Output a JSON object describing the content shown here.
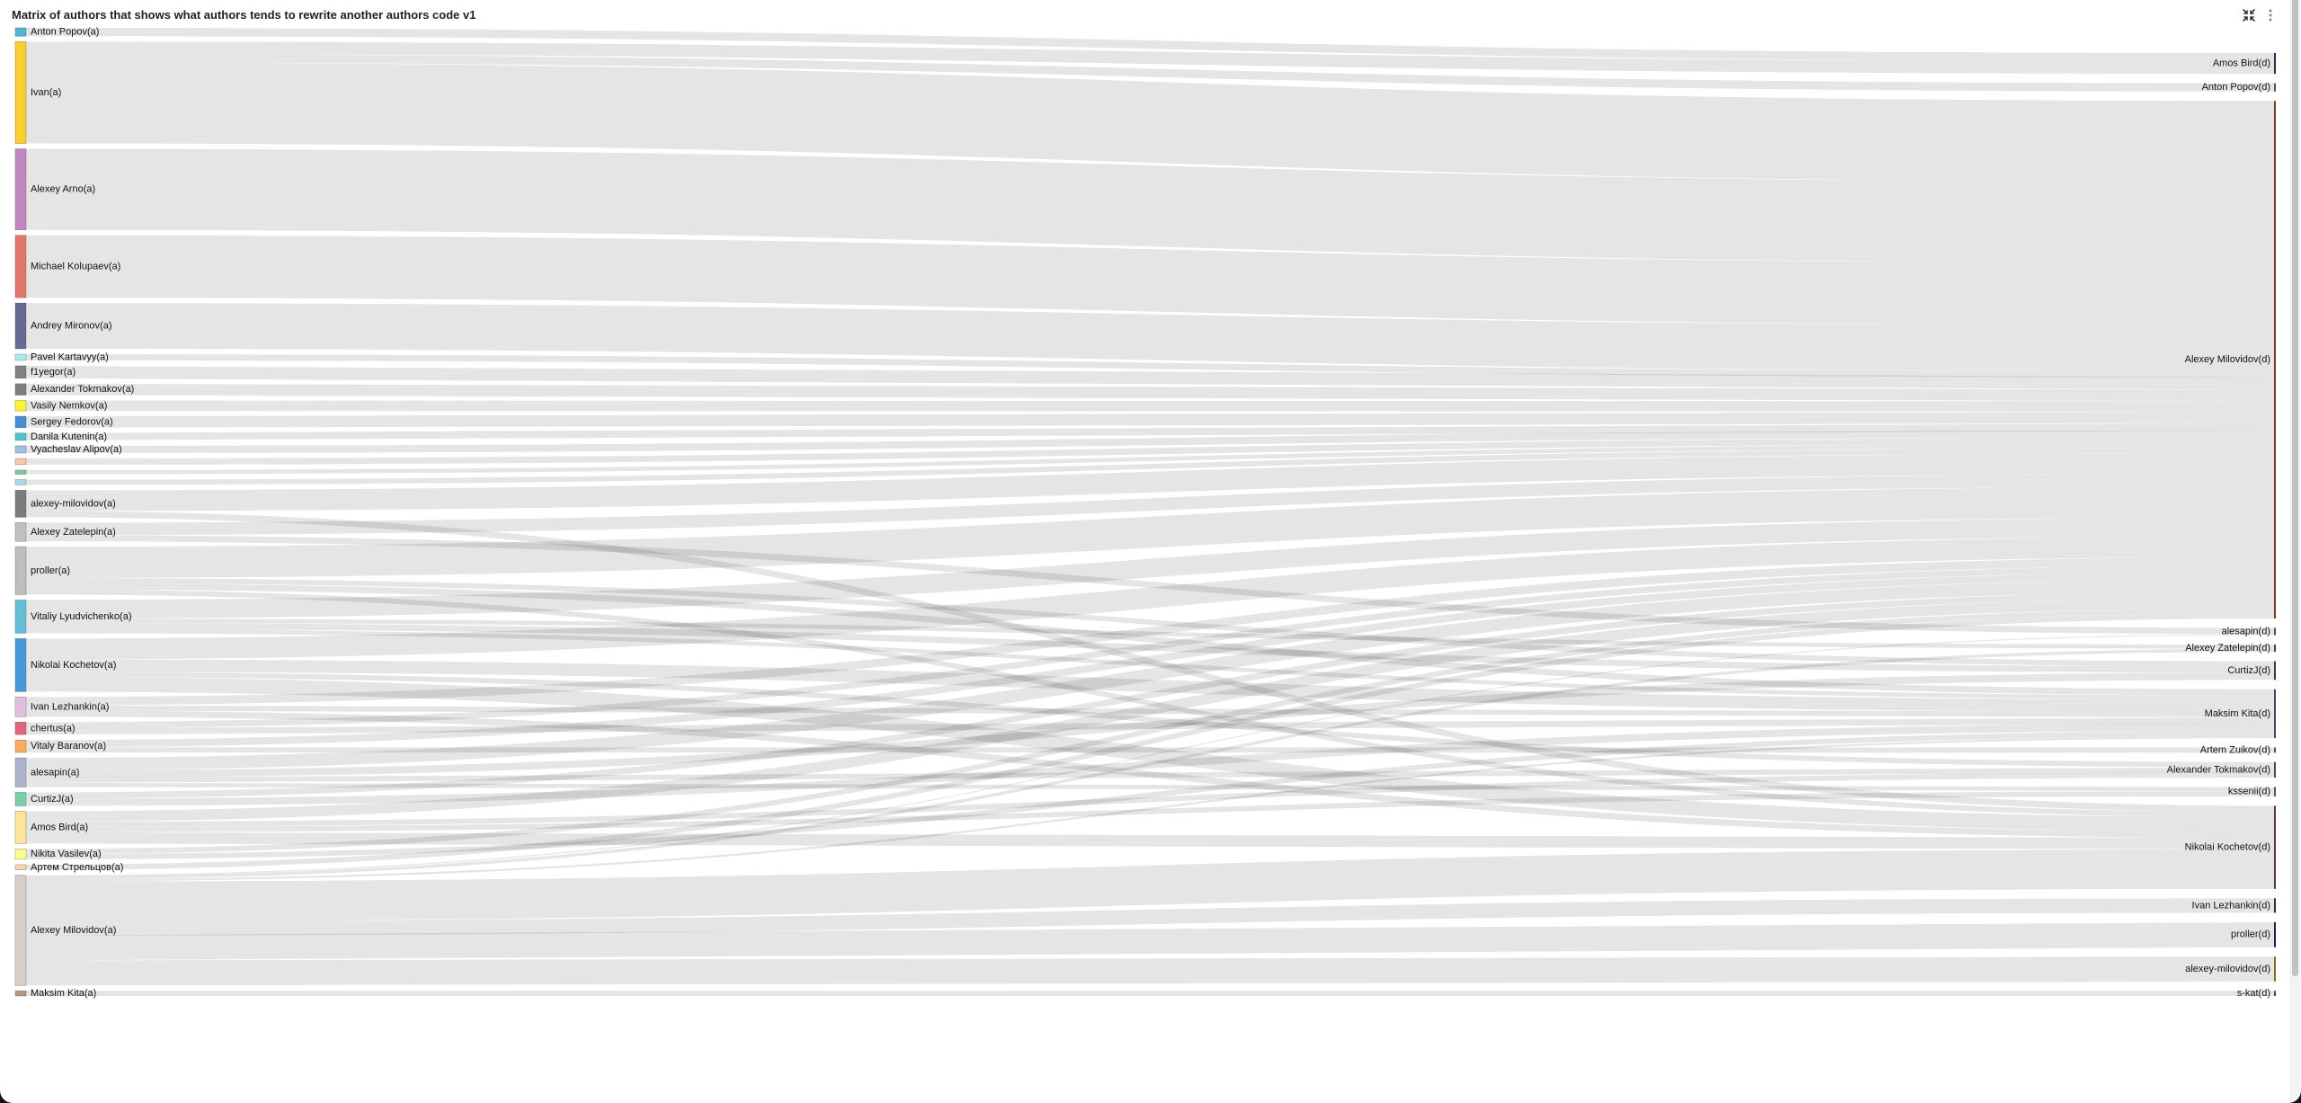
{
  "header": {
    "title": "Matrix of authors that shows what authors tends to rewrite another authors code v1",
    "icons": [
      "collapse-arrows-icon",
      "kebab-menu-icon"
    ]
  },
  "chart_data": {
    "type": "sankey",
    "title": "Matrix of authors that shows what authors tends to rewrite another authors code v1",
    "link_color": "#e5e5e5",
    "nodes": [
      {
        "id": "a0",
        "name": "Anton Popov(a)",
        "side": "left",
        "color": "#4cb8d4"
      },
      {
        "id": "a1",
        "name": "Ivan(a)",
        "side": "left",
        "color": "#fbcd2f"
      },
      {
        "id": "a2",
        "name": "Alexey Arno(a)",
        "side": "left",
        "color": "#c387c2"
      },
      {
        "id": "a3",
        "name": "Michael Kolupaev(a)",
        "side": "left",
        "color": "#e6756a"
      },
      {
        "id": "a4",
        "name": "Andrey Mironov(a)",
        "side": "left",
        "color": "#676a95"
      },
      {
        "id": "a5",
        "name": "Pavel Kartavyy(a)",
        "side": "left",
        "color": "#b0e8ec"
      },
      {
        "id": "a6",
        "name": "f1yegor(a)",
        "side": "left",
        "color": "#828282"
      },
      {
        "id": "a7",
        "name": "Alexander Tokmakov(a)",
        "side": "left",
        "color": "#7e7e7e"
      },
      {
        "id": "a8",
        "name": "Vasily Nemkov(a)",
        "side": "left",
        "color": "#f8f531"
      },
      {
        "id": "a9",
        "name": "Sergey Fedorov(a)",
        "side": "left",
        "color": "#4a8fd4"
      },
      {
        "id": "a10",
        "name": "Danila Kutenin(a)",
        "side": "left",
        "color": "#4dc7c9"
      },
      {
        "id": "a11",
        "name": "Vyacheslav Alipov(a)",
        "side": "left",
        "color": "#9cc3e1"
      },
      {
        "id": "a12",
        "name": "",
        "side": "left",
        "color": "#fbc5ad"
      },
      {
        "id": "a13",
        "name": "",
        "side": "left",
        "color": "#77cc9c"
      },
      {
        "id": "a14",
        "name": "",
        "side": "left",
        "color": "#a7dbe9"
      },
      {
        "id": "a15",
        "name": "alexey-milovidov(a)",
        "side": "left",
        "color": "#7c7c7c"
      },
      {
        "id": "a16",
        "name": "Alexey Zatelepin(a)",
        "side": "left",
        "color": "#c0c0c0"
      },
      {
        "id": "a17",
        "name": "proller(a)",
        "side": "left",
        "color": "#bfbfbf"
      },
      {
        "id": "a18",
        "name": "Vitaliy Lyudvichenko(a)",
        "side": "left",
        "color": "#62bfd7"
      },
      {
        "id": "a19",
        "name": "Nikolai Kochetov(a)",
        "side": "left",
        "color": "#449bd8"
      },
      {
        "id": "a20",
        "name": "Ivan Lezhankin(a)",
        "side": "left",
        "color": "#e0bfe0"
      },
      {
        "id": "a21",
        "name": "chertus(a)",
        "side": "left",
        "color": "#e4637a"
      },
      {
        "id": "a22",
        "name": "Vitaly Baranov(a)",
        "side": "left",
        "color": "#fdac5f"
      },
      {
        "id": "a23",
        "name": "alesapin(a)",
        "side": "left",
        "color": "#adb4cb"
      },
      {
        "id": "a24",
        "name": "CurtizJ(a)",
        "side": "left",
        "color": "#7acfad"
      },
      {
        "id": "a25",
        "name": "Amos Bird(a)",
        "side": "left",
        "color": "#fde597"
      },
      {
        "id": "a26",
        "name": "Nikita Vasilev(a)",
        "side": "left",
        "color": "#fdfd8e"
      },
      {
        "id": "a27",
        "name": "Артем Стрельцов(a)",
        "side": "left",
        "color": "#fdd3a8"
      },
      {
        "id": "a28",
        "name": "Alexey Milovidov(a)",
        "side": "left",
        "color": "#d8d0c6"
      },
      {
        "id": "a29",
        "name": "Maksim Kita(a)",
        "side": "left",
        "color": "#b09a83"
      },
      {
        "id": "d0",
        "name": "Amos Bird(d)",
        "side": "right",
        "color": "#2c2c4e"
      },
      {
        "id": "d1",
        "name": "Anton Popov(d)",
        "side": "right",
        "color": "#4b5563"
      },
      {
        "id": "d2",
        "name": "Alexey Milovidov(d)",
        "side": "right",
        "color": "#7a3f22"
      },
      {
        "id": "d3",
        "name": "alesapin(d)",
        "side": "right",
        "color": "#5a4a50"
      },
      {
        "id": "d4",
        "name": "Alexey Zatelepin(d)",
        "side": "right",
        "color": "#444444"
      },
      {
        "id": "d5",
        "name": "CurtizJ(d)",
        "side": "right",
        "color": "#3c3c3c"
      },
      {
        "id": "d6",
        "name": "Maksim Kita(d)",
        "side": "right",
        "color": "#4a4560"
      },
      {
        "id": "d7",
        "name": "Artem Zuikov(d)",
        "side": "right",
        "color": "#3f5a52"
      },
      {
        "id": "d8",
        "name": "Alexander Tokmakov(d)",
        "side": "right",
        "color": "#3f524f"
      },
      {
        "id": "d9",
        "name": "kssenii(d)",
        "side": "right",
        "color": "#4a5a66"
      },
      {
        "id": "d10",
        "name": "Nikolai Kochetov(d)",
        "side": "right",
        "color": "#5a3a44"
      },
      {
        "id": "d11",
        "name": "Ivan Lezhankin(d)",
        "side": "right",
        "color": "#2d3447"
      },
      {
        "id": "d12",
        "name": "proller(d)",
        "side": "right",
        "color": "#1f2540"
      },
      {
        "id": "d13",
        "name": "alexey-milovidov(d)",
        "side": "right",
        "color": "#8a6a2a"
      },
      {
        "id": "d14",
        "name": "s-kat(d)",
        "side": "right",
        "color": "#4a4a4a"
      }
    ],
    "links": [
      {
        "source": "a0",
        "target": "d0",
        "value": 8
      },
      {
        "source": "a1",
        "target": "d0",
        "value": 12
      },
      {
        "source": "a1",
        "target": "d1",
        "value": 8
      },
      {
        "source": "a1",
        "target": "d2",
        "value": 78
      },
      {
        "source": "a2",
        "target": "d2",
        "value": 78
      },
      {
        "source": "a3",
        "target": "d2",
        "value": 60
      },
      {
        "source": "a4",
        "target": "d2",
        "value": 44
      },
      {
        "source": "a5",
        "target": "d2",
        "value": 6
      },
      {
        "source": "a6",
        "target": "d2",
        "value": 12
      },
      {
        "source": "a7",
        "target": "d2",
        "value": 11
      },
      {
        "source": "a8",
        "target": "d2",
        "value": 10
      },
      {
        "source": "a9",
        "target": "d2",
        "value": 11
      },
      {
        "source": "a10",
        "target": "d2",
        "value": 7
      },
      {
        "source": "a11",
        "target": "d2",
        "value": 7
      },
      {
        "source": "a12",
        "target": "d2",
        "value": 6
      },
      {
        "source": "a13",
        "target": "d2",
        "value": 4
      },
      {
        "source": "a14",
        "target": "d2",
        "value": 5
      },
      {
        "source": "a15",
        "target": "d2",
        "value": 20
      },
      {
        "source": "a15",
        "target": "d10",
        "value": 6
      },
      {
        "source": "a16",
        "target": "d2",
        "value": 12
      },
      {
        "source": "a16",
        "target": "d3",
        "value": 6
      },
      {
        "source": "a17",
        "target": "d2",
        "value": 30
      },
      {
        "source": "a17",
        "target": "d5",
        "value": 5
      },
      {
        "source": "a17",
        "target": "d6",
        "value": 6
      },
      {
        "source": "a17",
        "target": "d10",
        "value": 5
      },
      {
        "source": "a18",
        "target": "d2",
        "value": 18
      },
      {
        "source": "a18",
        "target": "d4",
        "value": 4
      },
      {
        "source": "a18",
        "target": "d5",
        "value": 6
      },
      {
        "source": "a18",
        "target": "d6",
        "value": 4
      },
      {
        "source": "a19",
        "target": "d2",
        "value": 20
      },
      {
        "source": "a19",
        "target": "d6",
        "value": 12
      },
      {
        "source": "a19",
        "target": "d8",
        "value": 5
      },
      {
        "source": "a19",
        "target": "d10",
        "value": 14
      },
      {
        "source": "a20",
        "target": "d2",
        "value": 8
      },
      {
        "source": "a20",
        "target": "d6",
        "value": 5
      },
      {
        "source": "a20",
        "target": "d10",
        "value": 6
      },
      {
        "source": "a21",
        "target": "d2",
        "value": 6
      },
      {
        "source": "a21",
        "target": "d6",
        "value": 6
      },
      {
        "source": "a22",
        "target": "d2",
        "value": 7
      },
      {
        "source": "a22",
        "target": "d7",
        "value": 5
      },
      {
        "source": "a23",
        "target": "d2",
        "value": 12
      },
      {
        "source": "a23",
        "target": "d5",
        "value": 7
      },
      {
        "source": "a23",
        "target": "d8",
        "value": 5
      },
      {
        "source": "a23",
        "target": "d9",
        "value": 4
      },
      {
        "source": "a24",
        "target": "d2",
        "value": 6
      },
      {
        "source": "a24",
        "target": "d6",
        "value": 7
      },
      {
        "source": "a25",
        "target": "d2",
        "value": 10
      },
      {
        "source": "a25",
        "target": "d8",
        "value": 5
      },
      {
        "source": "a25",
        "target": "d9",
        "value": 5
      },
      {
        "source": "a25",
        "target": "d10",
        "value": 11
      },
      {
        "source": "a26",
        "target": "d2",
        "value": 5
      },
      {
        "source": "a26",
        "target": "d6",
        "value": 5
      },
      {
        "source": "a27",
        "target": "d2",
        "value": 5
      },
      {
        "source": "a28",
        "target": "d3",
        "value": 1
      },
      {
        "source": "a28",
        "target": "d4",
        "value": 3
      },
      {
        "source": "a28",
        "target": "d6",
        "value": 2
      },
      {
        "source": "a28",
        "target": "d10",
        "value": 38
      },
      {
        "source": "a28",
        "target": "d11",
        "value": 14
      },
      {
        "source": "a28",
        "target": "d12",
        "value": 24
      },
      {
        "source": "a28",
        "target": "d13",
        "value": 24
      },
      {
        "source": "a29",
        "target": "d14",
        "value": 5
      }
    ]
  }
}
